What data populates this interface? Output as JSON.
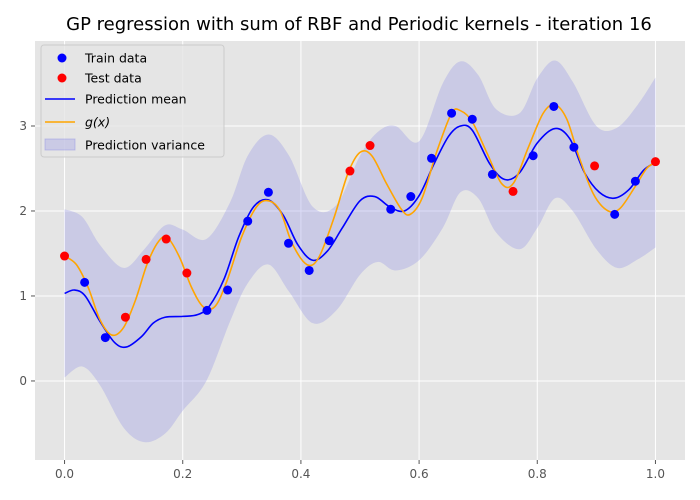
{
  "chart_data": {
    "type": "scatter",
    "title": "GP regression with sum of RBF and Periodic kernels - iteration 16",
    "xlabel": "",
    "ylabel": "",
    "xlim": [
      -0.05,
      1.05
    ],
    "ylim": [
      -0.93,
      4.0
    ],
    "xticks": [
      {
        "value": 0.0,
        "label": "0.0"
      },
      {
        "value": 0.2,
        "label": "0.2"
      },
      {
        "value": 0.4,
        "label": "0.4"
      },
      {
        "value": 0.6,
        "label": "0.6"
      },
      {
        "value": 0.8,
        "label": "0.8"
      },
      {
        "value": 1.0,
        "label": "1.0"
      }
    ],
    "yticks": [
      {
        "value": 0,
        "label": "0"
      },
      {
        "value": 1,
        "label": "1"
      },
      {
        "value": 2,
        "label": "2"
      },
      {
        "value": 3,
        "label": "3"
      }
    ],
    "grid": true,
    "legend_position": "top-left",
    "colors": {
      "train": "#0000ff",
      "test": "#ff0000",
      "mean": "#0000ff",
      "g": "#ffa500",
      "variance": "#8a8ae6",
      "background": "#e5e5e5",
      "grid": "#ffffff"
    },
    "legend": [
      {
        "key": "train",
        "label": "Train data",
        "kind": "marker"
      },
      {
        "key": "test",
        "label": "Test data",
        "kind": "marker"
      },
      {
        "key": "mean",
        "label": "Prediction mean",
        "kind": "line"
      },
      {
        "key": "g",
        "label": "g(x)",
        "kind": "line"
      },
      {
        "key": "variance",
        "label": "Prediction variance",
        "kind": "patch"
      }
    ],
    "series": [
      {
        "name": "Train data",
        "kind": "scatter",
        "points": [
          [
            0.034,
            1.16
          ],
          [
            0.069,
            0.51
          ],
          [
            0.241,
            0.83
          ],
          [
            0.276,
            1.07
          ],
          [
            0.31,
            1.88
          ],
          [
            0.345,
            2.22
          ],
          [
            0.379,
            1.62
          ],
          [
            0.414,
            1.3
          ],
          [
            0.448,
            1.65
          ],
          [
            0.552,
            2.02
          ],
          [
            0.586,
            2.17
          ],
          [
            0.621,
            2.62
          ],
          [
            0.655,
            3.15
          ],
          [
            0.69,
            3.08
          ],
          [
            0.724,
            2.43
          ],
          [
            0.793,
            2.65
          ],
          [
            0.828,
            3.23
          ],
          [
            0.862,
            2.75
          ],
          [
            0.931,
            1.96
          ],
          [
            0.966,
            2.35
          ]
        ]
      },
      {
        "name": "Test data",
        "kind": "scatter",
        "points": [
          [
            0.0,
            1.47
          ],
          [
            0.103,
            0.75
          ],
          [
            0.138,
            1.43
          ],
          [
            0.172,
            1.67
          ],
          [
            0.207,
            1.27
          ],
          [
            0.483,
            2.47
          ],
          [
            0.517,
            2.77
          ],
          [
            0.759,
            2.23
          ],
          [
            0.897,
            2.53
          ],
          [
            1.0,
            2.58
          ]
        ]
      },
      {
        "name": "Prediction mean",
        "kind": "line",
        "points": [
          [
            0.0,
            1.03
          ],
          [
            0.017,
            1.07
          ],
          [
            0.035,
            1.0
          ],
          [
            0.06,
            0.7
          ],
          [
            0.085,
            0.45
          ],
          [
            0.105,
            0.4
          ],
          [
            0.13,
            0.52
          ],
          [
            0.15,
            0.68
          ],
          [
            0.17,
            0.75
          ],
          [
            0.2,
            0.76
          ],
          [
            0.225,
            0.78
          ],
          [
            0.245,
            0.88
          ],
          [
            0.27,
            1.2
          ],
          [
            0.295,
            1.7
          ],
          [
            0.32,
            2.05
          ],
          [
            0.345,
            2.13
          ],
          [
            0.37,
            1.95
          ],
          [
            0.395,
            1.6
          ],
          [
            0.42,
            1.42
          ],
          [
            0.445,
            1.53
          ],
          [
            0.47,
            1.8
          ],
          [
            0.5,
            2.12
          ],
          [
            0.525,
            2.17
          ],
          [
            0.55,
            2.05
          ],
          [
            0.575,
            2.0
          ],
          [
            0.6,
            2.18
          ],
          [
            0.625,
            2.55
          ],
          [
            0.65,
            2.88
          ],
          [
            0.67,
            3.0
          ],
          [
            0.69,
            2.95
          ],
          [
            0.72,
            2.55
          ],
          [
            0.745,
            2.37
          ],
          [
            0.77,
            2.45
          ],
          [
            0.8,
            2.8
          ],
          [
            0.83,
            2.97
          ],
          [
            0.855,
            2.85
          ],
          [
            0.88,
            2.45
          ],
          [
            0.905,
            2.22
          ],
          [
            0.93,
            2.15
          ],
          [
            0.955,
            2.25
          ],
          [
            0.98,
            2.48
          ],
          [
            1.0,
            2.57
          ]
        ]
      },
      {
        "name": "g(x)",
        "kind": "line",
        "points": [
          [
            0.0,
            1.47
          ],
          [
            0.02,
            1.37
          ],
          [
            0.04,
            1.1
          ],
          [
            0.06,
            0.72
          ],
          [
            0.08,
            0.54
          ],
          [
            0.1,
            0.63
          ],
          [
            0.12,
            0.95
          ],
          [
            0.14,
            1.38
          ],
          [
            0.16,
            1.65
          ],
          [
            0.175,
            1.68
          ],
          [
            0.195,
            1.45
          ],
          [
            0.215,
            1.1
          ],
          [
            0.235,
            0.87
          ],
          [
            0.255,
            0.88
          ],
          [
            0.275,
            1.18
          ],
          [
            0.3,
            1.7
          ],
          [
            0.325,
            2.05
          ],
          [
            0.345,
            2.12
          ],
          [
            0.365,
            2.0
          ],
          [
            0.385,
            1.62
          ],
          [
            0.41,
            1.37
          ],
          [
            0.43,
            1.45
          ],
          [
            0.455,
            1.9
          ],
          [
            0.48,
            2.45
          ],
          [
            0.5,
            2.69
          ],
          [
            0.52,
            2.65
          ],
          [
            0.545,
            2.32
          ],
          [
            0.57,
            2.02
          ],
          [
            0.585,
            1.96
          ],
          [
            0.605,
            2.15
          ],
          [
            0.63,
            2.7
          ],
          [
            0.655,
            3.15
          ],
          [
            0.67,
            3.18
          ],
          [
            0.69,
            3.05
          ],
          [
            0.715,
            2.68
          ],
          [
            0.74,
            2.32
          ],
          [
            0.76,
            2.33
          ],
          [
            0.785,
            2.75
          ],
          [
            0.81,
            3.15
          ],
          [
            0.83,
            3.25
          ],
          [
            0.85,
            3.08
          ],
          [
            0.87,
            2.65
          ],
          [
            0.895,
            2.2
          ],
          [
            0.92,
            2.0
          ],
          [
            0.94,
            2.03
          ],
          [
            0.965,
            2.28
          ],
          [
            0.985,
            2.5
          ],
          [
            1.0,
            2.57
          ]
        ]
      },
      {
        "name": "Prediction variance",
        "kind": "band",
        "x": [
          0.0,
          0.03,
          0.06,
          0.1,
          0.135,
          0.17,
          0.2,
          0.24,
          0.28,
          0.31,
          0.345,
          0.38,
          0.42,
          0.46,
          0.5,
          0.53,
          0.56,
          0.6,
          0.64,
          0.67,
          0.7,
          0.73,
          0.77,
          0.8,
          0.83,
          0.86,
          0.9,
          0.935,
          0.97,
          1.0
        ],
        "lower": [
          0.04,
          0.17,
          -0.05,
          -0.55,
          -0.72,
          -0.62,
          -0.35,
          0.0,
          0.7,
          1.15,
          1.37,
          1.05,
          0.68,
          0.83,
          1.25,
          1.4,
          1.3,
          1.42,
          1.8,
          2.22,
          2.15,
          1.75,
          1.55,
          1.8,
          2.15,
          2.0,
          1.55,
          1.33,
          1.43,
          1.57
        ],
        "upper": [
          2.02,
          1.93,
          1.6,
          1.33,
          1.55,
          1.83,
          1.78,
          1.67,
          2.1,
          2.65,
          2.9,
          2.65,
          2.05,
          2.07,
          2.65,
          2.93,
          3.0,
          2.82,
          3.5,
          3.76,
          3.6,
          3.2,
          3.15,
          3.56,
          3.77,
          3.52,
          3.0,
          2.98,
          3.25,
          3.57
        ]
      }
    ]
  }
}
